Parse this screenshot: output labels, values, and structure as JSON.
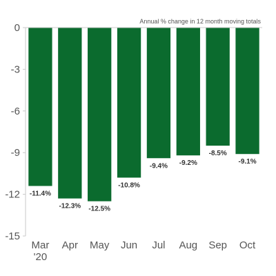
{
  "chart_data": {
    "type": "bar",
    "title": "",
    "subtitle": "Annual % change in 12 month moving totals",
    "xlabel": "",
    "ylabel": "",
    "categories": [
      "Mar\n'20",
      "Apr",
      "May",
      "Jun",
      "Jul",
      "Aug",
      "Sep",
      "Oct"
    ],
    "values": [
      -11.4,
      -12.3,
      -12.5,
      -10.8,
      -9.4,
      -9.2,
      -8.5,
      -9.1
    ],
    "data_labels": [
      "-11.4%",
      "-12.3%",
      "-12.5%",
      "-10.8%",
      "-9.4%",
      "-9.2%",
      "-8.5%",
      "-9.1%"
    ],
    "ylim": [
      -15,
      0
    ],
    "y_ticks": [
      0,
      -3,
      -6,
      -9,
      -12,
      -15
    ],
    "y_tick_labels": [
      "0",
      "-3",
      "-6",
      "-9",
      "-12",
      "-15"
    ],
    "grid": false,
    "legend": "none",
    "colors": {
      "bar": "#0b6b2e",
      "axis": "#c8c8c8",
      "text": "#555555"
    }
  }
}
